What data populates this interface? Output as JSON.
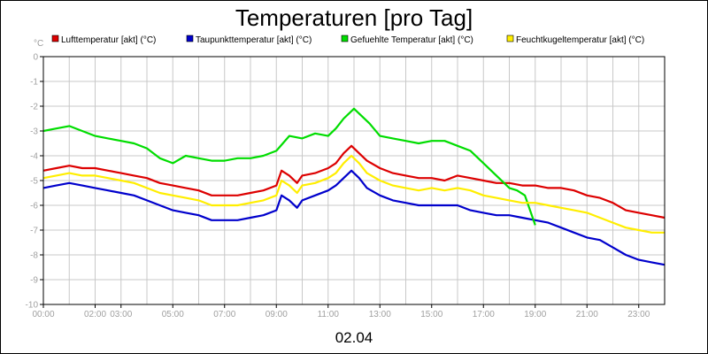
{
  "chart_data": {
    "type": "line",
    "title": "Temperaturen [pro Tag]",
    "date_label": "02.04",
    "yunit": "°C",
    "xlim": [
      0,
      24
    ],
    "ylim": [
      -10,
      0
    ],
    "grid": true,
    "legend_position": "top",
    "xticks": [
      {
        "value": 0,
        "label": "00:00"
      },
      {
        "value": 2,
        "label": "02:00"
      },
      {
        "value": 3,
        "label": "03:00"
      },
      {
        "value": 5,
        "label": "05:00"
      },
      {
        "value": 7,
        "label": "07:00"
      },
      {
        "value": 9,
        "label": "09:00"
      },
      {
        "value": 11,
        "label": "11:00"
      },
      {
        "value": 13,
        "label": "13:00"
      },
      {
        "value": 15,
        "label": "15:00"
      },
      {
        "value": 17,
        "label": "17:00"
      },
      {
        "value": 19,
        "label": "19:00"
      },
      {
        "value": 21,
        "label": "21:00"
      },
      {
        "value": 23,
        "label": "23:00"
      }
    ],
    "yticks": [
      0,
      -1,
      -2,
      -3,
      -4,
      -5,
      -6,
      -7,
      -8,
      -9,
      -10
    ],
    "series": [
      {
        "name": "Lufttemperatur [akt] (°C)",
        "color": "#dd0000",
        "points": [
          [
            0,
            -4.6
          ],
          [
            0.5,
            -4.5
          ],
          [
            1,
            -4.4
          ],
          [
            1.5,
            -4.5
          ],
          [
            2,
            -4.5
          ],
          [
            2.5,
            -4.6
          ],
          [
            3,
            -4.7
          ],
          [
            3.5,
            -4.8
          ],
          [
            4,
            -4.9
          ],
          [
            4.5,
            -5.1
          ],
          [
            5,
            -5.2
          ],
          [
            5.5,
            -5.3
          ],
          [
            6,
            -5.4
          ],
          [
            6.5,
            -5.6
          ],
          [
            7,
            -5.6
          ],
          [
            7.5,
            -5.6
          ],
          [
            8,
            -5.5
          ],
          [
            8.5,
            -5.4
          ],
          [
            9,
            -5.2
          ],
          [
            9.2,
            -4.6
          ],
          [
            9.5,
            -4.8
          ],
          [
            9.8,
            -5.1
          ],
          [
            10,
            -4.8
          ],
          [
            10.5,
            -4.7
          ],
          [
            11,
            -4.5
          ],
          [
            11.3,
            -4.3
          ],
          [
            11.6,
            -3.9
          ],
          [
            11.9,
            -3.6
          ],
          [
            12.2,
            -3.9
          ],
          [
            12.5,
            -4.2
          ],
          [
            13,
            -4.5
          ],
          [
            13.5,
            -4.7
          ],
          [
            14,
            -4.8
          ],
          [
            14.5,
            -4.9
          ],
          [
            15,
            -4.9
          ],
          [
            15.5,
            -5.0
          ],
          [
            16,
            -4.8
          ],
          [
            16.5,
            -4.9
          ],
          [
            17,
            -5.0
          ],
          [
            17.5,
            -5.1
          ],
          [
            18,
            -5.1
          ],
          [
            18.5,
            -5.2
          ],
          [
            19,
            -5.2
          ],
          [
            19.5,
            -5.3
          ],
          [
            20,
            -5.3
          ],
          [
            20.5,
            -5.4
          ],
          [
            21,
            -5.6
          ],
          [
            21.5,
            -5.7
          ],
          [
            22,
            -5.9
          ],
          [
            22.5,
            -6.2
          ],
          [
            23,
            -6.3
          ],
          [
            23.5,
            -6.4
          ],
          [
            24,
            -6.5
          ]
        ]
      },
      {
        "name": "Taupunkttemperatur [akt] (°C)",
        "color": "#0000cc",
        "points": [
          [
            0,
            -5.3
          ],
          [
            0.5,
            -5.2
          ],
          [
            1,
            -5.1
          ],
          [
            1.5,
            -5.2
          ],
          [
            2,
            -5.3
          ],
          [
            2.5,
            -5.4
          ],
          [
            3,
            -5.5
          ],
          [
            3.5,
            -5.6
          ],
          [
            4,
            -5.8
          ],
          [
            4.5,
            -6.0
          ],
          [
            5,
            -6.2
          ],
          [
            5.5,
            -6.3
          ],
          [
            6,
            -6.4
          ],
          [
            6.5,
            -6.6
          ],
          [
            7,
            -6.6
          ],
          [
            7.5,
            -6.6
          ],
          [
            8,
            -6.5
          ],
          [
            8.5,
            -6.4
          ],
          [
            9,
            -6.2
          ],
          [
            9.2,
            -5.6
          ],
          [
            9.5,
            -5.8
          ],
          [
            9.8,
            -6.1
          ],
          [
            10,
            -5.8
          ],
          [
            10.5,
            -5.6
          ],
          [
            11,
            -5.4
          ],
          [
            11.3,
            -5.2
          ],
          [
            11.6,
            -4.9
          ],
          [
            11.9,
            -4.6
          ],
          [
            12.2,
            -4.9
          ],
          [
            12.5,
            -5.3
          ],
          [
            13,
            -5.6
          ],
          [
            13.5,
            -5.8
          ],
          [
            14,
            -5.9
          ],
          [
            14.5,
            -6.0
          ],
          [
            15,
            -6.0
          ],
          [
            15.5,
            -6.0
          ],
          [
            16,
            -6.0
          ],
          [
            16.5,
            -6.2
          ],
          [
            17,
            -6.3
          ],
          [
            17.5,
            -6.4
          ],
          [
            18,
            -6.4
          ],
          [
            18.5,
            -6.5
          ],
          [
            19,
            -6.6
          ],
          [
            19.5,
            -6.7
          ],
          [
            20,
            -6.9
          ],
          [
            20.5,
            -7.1
          ],
          [
            21,
            -7.3
          ],
          [
            21.5,
            -7.4
          ],
          [
            22,
            -7.7
          ],
          [
            22.5,
            -8.0
          ],
          [
            23,
            -8.2
          ],
          [
            23.5,
            -8.3
          ],
          [
            24,
            -8.4
          ]
        ]
      },
      {
        "name": "Gefuehlte Temperatur [akt] (°C)",
        "color": "#00dd00",
        "points": [
          [
            0,
            -3.0
          ],
          [
            0.5,
            -2.9
          ],
          [
            1,
            -2.8
          ],
          [
            1.5,
            -3.0
          ],
          [
            2,
            -3.2
          ],
          [
            2.5,
            -3.3
          ],
          [
            3,
            -3.4
          ],
          [
            3.5,
            -3.5
          ],
          [
            4,
            -3.7
          ],
          [
            4.5,
            -4.1
          ],
          [
            5,
            -4.3
          ],
          [
            5.5,
            -4.0
          ],
          [
            6,
            -4.1
          ],
          [
            6.5,
            -4.2
          ],
          [
            7,
            -4.2
          ],
          [
            7.5,
            -4.1
          ],
          [
            8,
            -4.1
          ],
          [
            8.5,
            -4.0
          ],
          [
            9,
            -3.8
          ],
          [
            9.5,
            -3.2
          ],
          [
            10,
            -3.3
          ],
          [
            10.5,
            -3.1
          ],
          [
            11,
            -3.2
          ],
          [
            11.3,
            -2.9
          ],
          [
            11.6,
            -2.5
          ],
          [
            12,
            -2.1
          ],
          [
            12.3,
            -2.4
          ],
          [
            12.6,
            -2.7
          ],
          [
            13,
            -3.2
          ],
          [
            13.5,
            -3.3
          ],
          [
            14,
            -3.4
          ],
          [
            14.5,
            -3.5
          ],
          [
            15,
            -3.4
          ],
          [
            15.5,
            -3.4
          ],
          [
            16,
            -3.6
          ],
          [
            16.5,
            -3.8
          ],
          [
            17,
            -4.3
          ],
          [
            17.5,
            -4.8
          ],
          [
            18,
            -5.3
          ],
          [
            18.3,
            -5.4
          ],
          [
            18.6,
            -5.6
          ],
          [
            19,
            -6.8
          ]
        ]
      },
      {
        "name": "Feuchtkugeltemperatur [akt] (°C)",
        "color": "#ffee00",
        "points": [
          [
            0,
            -4.9
          ],
          [
            0.5,
            -4.8
          ],
          [
            1,
            -4.7
          ],
          [
            1.5,
            -4.8
          ],
          [
            2,
            -4.8
          ],
          [
            2.5,
            -4.9
          ],
          [
            3,
            -5.0
          ],
          [
            3.5,
            -5.1
          ],
          [
            4,
            -5.3
          ],
          [
            4.5,
            -5.5
          ],
          [
            5,
            -5.6
          ],
          [
            5.5,
            -5.7
          ],
          [
            6,
            -5.8
          ],
          [
            6.5,
            -6.0
          ],
          [
            7,
            -6.0
          ],
          [
            7.5,
            -6.0
          ],
          [
            8,
            -5.9
          ],
          [
            8.5,
            -5.8
          ],
          [
            9,
            -5.6
          ],
          [
            9.2,
            -5.0
          ],
          [
            9.5,
            -5.2
          ],
          [
            9.8,
            -5.5
          ],
          [
            10,
            -5.2
          ],
          [
            10.5,
            -5.1
          ],
          [
            11,
            -4.9
          ],
          [
            11.3,
            -4.7
          ],
          [
            11.6,
            -4.3
          ],
          [
            11.9,
            -4.0
          ],
          [
            12.2,
            -4.3
          ],
          [
            12.5,
            -4.7
          ],
          [
            13,
            -5.0
          ],
          [
            13.5,
            -5.2
          ],
          [
            14,
            -5.3
          ],
          [
            14.5,
            -5.4
          ],
          [
            15,
            -5.3
          ],
          [
            15.5,
            -5.4
          ],
          [
            16,
            -5.3
          ],
          [
            16.5,
            -5.4
          ],
          [
            17,
            -5.6
          ],
          [
            17.5,
            -5.7
          ],
          [
            18,
            -5.8
          ],
          [
            18.5,
            -5.9
          ],
          [
            19,
            -5.9
          ],
          [
            19.5,
            -6.0
          ],
          [
            20,
            -6.1
          ],
          [
            20.5,
            -6.2
          ],
          [
            21,
            -6.3
          ],
          [
            21.5,
            -6.5
          ],
          [
            22,
            -6.7
          ],
          [
            22.5,
            -6.9
          ],
          [
            23,
            -7.0
          ],
          [
            23.5,
            -7.1
          ],
          [
            24,
            -7.1
          ]
        ]
      }
    ]
  }
}
